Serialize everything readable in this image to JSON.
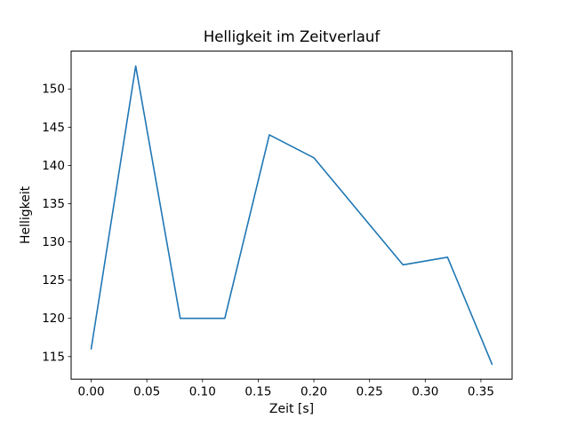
{
  "chart_data": {
    "type": "line",
    "title": "Helligkeit im Zeitverlauf",
    "xlabel": "Zeit [s]",
    "ylabel": "Helligkeit",
    "x": [
      0.0,
      0.04,
      0.08,
      0.12,
      0.16,
      0.2,
      0.24,
      0.28,
      0.32,
      0.36
    ],
    "y": [
      116,
      153,
      120,
      120,
      144,
      141,
      134,
      127,
      128,
      114
    ],
    "series": [
      {
        "name": "Helligkeit",
        "color": "#1f77b4"
      }
    ],
    "line_color": "#1f77b4",
    "background_color": "#ffffff",
    "xlim": [
      -0.018,
      0.378
    ],
    "ylim": [
      112.05,
      154.95
    ],
    "xtick_values": [
      0.0,
      0.05,
      0.1,
      0.15,
      0.2,
      0.25,
      0.3,
      0.35
    ],
    "xtick_labels": [
      "0.00",
      "0.05",
      "0.10",
      "0.15",
      "0.20",
      "0.25",
      "0.30",
      "0.35"
    ],
    "ytick_values": [
      115,
      120,
      125,
      130,
      135,
      140,
      145,
      150
    ],
    "ytick_labels": [
      "115",
      "120",
      "125",
      "130",
      "135",
      "140",
      "145",
      "150"
    ],
    "grid": false,
    "legend": null
  }
}
